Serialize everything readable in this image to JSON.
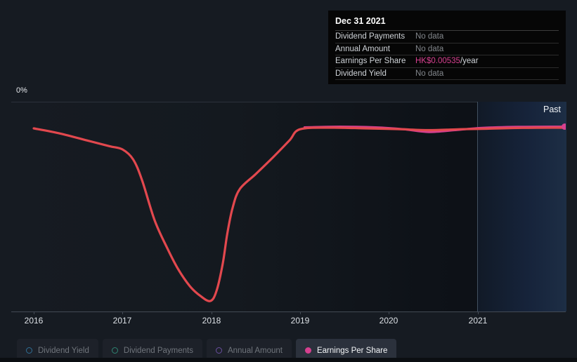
{
  "colors": {
    "background": "#161b22",
    "plot_dark": "#0d1117",
    "past_band_edge": "#41505f",
    "line_red": "#e2484e",
    "line_pink": "#d6408f",
    "tooltip_bg": "#060606"
  },
  "tooltip": {
    "title": "Dec 31 2021",
    "rows": [
      {
        "label": "Dividend Payments",
        "value": "No data",
        "suffix": ""
      },
      {
        "label": "Annual Amount",
        "value": "No data",
        "suffix": ""
      },
      {
        "label": "Earnings Per Share",
        "value": "HK$0.00535",
        "suffix": "/year",
        "highlight": true
      },
      {
        "label": "Dividend Yield",
        "value": "No data",
        "suffix": ""
      }
    ]
  },
  "chart_data": {
    "type": "line",
    "title": "",
    "x_tick_labels": [
      "2016",
      "2017",
      "2018",
      "2019",
      "2020",
      "2021"
    ],
    "x_range": [
      2016,
      2022
    ],
    "y_axis_top_label": "0%",
    "y_axis_bottom_label": "0%",
    "past_label": "Past",
    "grid": "top-gridline-and-x-axis-only",
    "legend_position": "bottom",
    "series": [
      {
        "name": "Earnings Per Share",
        "color": "#e2484e",
        "recent_color": "#d6408f",
        "end_date": "Dec 31 2021",
        "end_value_label": "HK$0.00535/year",
        "note": "y-axis shows no numeric scale; values are relative (1 = plateau level, 0 = minimum of the dip near 2018)",
        "points_year_relative": [
          [
            2016.0,
            1.0
          ],
          [
            2016.3,
            0.97
          ],
          [
            2016.6,
            0.93
          ],
          [
            2016.85,
            0.897
          ],
          [
            2017.0,
            0.878
          ],
          [
            2017.12,
            0.82
          ],
          [
            2017.22,
            0.7
          ],
          [
            2017.36,
            0.47
          ],
          [
            2017.5,
            0.31
          ],
          [
            2017.62,
            0.19
          ],
          [
            2017.76,
            0.085
          ],
          [
            2017.88,
            0.028
          ],
          [
            2017.99,
            0.0
          ],
          [
            2018.06,
            0.06
          ],
          [
            2018.13,
            0.22
          ],
          [
            2018.18,
            0.39
          ],
          [
            2018.24,
            0.54
          ],
          [
            2018.32,
            0.648
          ],
          [
            2018.5,
            0.735
          ],
          [
            2018.7,
            0.835
          ],
          [
            2018.88,
            0.93
          ],
          [
            2019.0,
            0.995
          ],
          [
            2019.35,
            1.004
          ],
          [
            2019.75,
            1.0
          ],
          [
            2020.1,
            0.996
          ],
          [
            2020.45,
            0.99
          ],
          [
            2020.8,
            0.995
          ],
          [
            2021.1,
            0.998
          ],
          [
            2021.5,
            1.003
          ],
          [
            2021.98,
            1.004
          ]
        ],
        "recent_overlay_points_year_relative": [
          [
            2019.05,
            1.006
          ],
          [
            2019.45,
            1.01
          ],
          [
            2019.85,
            1.006
          ],
          [
            2020.15,
            0.996
          ],
          [
            2020.45,
            0.979
          ],
          [
            2020.75,
            0.99
          ],
          [
            2021.05,
            1.003
          ],
          [
            2021.45,
            1.009
          ],
          [
            2021.98,
            1.01
          ]
        ]
      }
    ]
  },
  "legend": {
    "items": [
      {
        "label": "Dividend Yield",
        "color": "#2f6f96",
        "active": false
      },
      {
        "label": "Dividend Payments",
        "color": "#2f8573",
        "active": false
      },
      {
        "label": "Annual Amount",
        "color": "#6a4fa0",
        "active": false
      },
      {
        "label": "Earnings Per Share",
        "color": "#d6408f",
        "active": true
      }
    ]
  }
}
